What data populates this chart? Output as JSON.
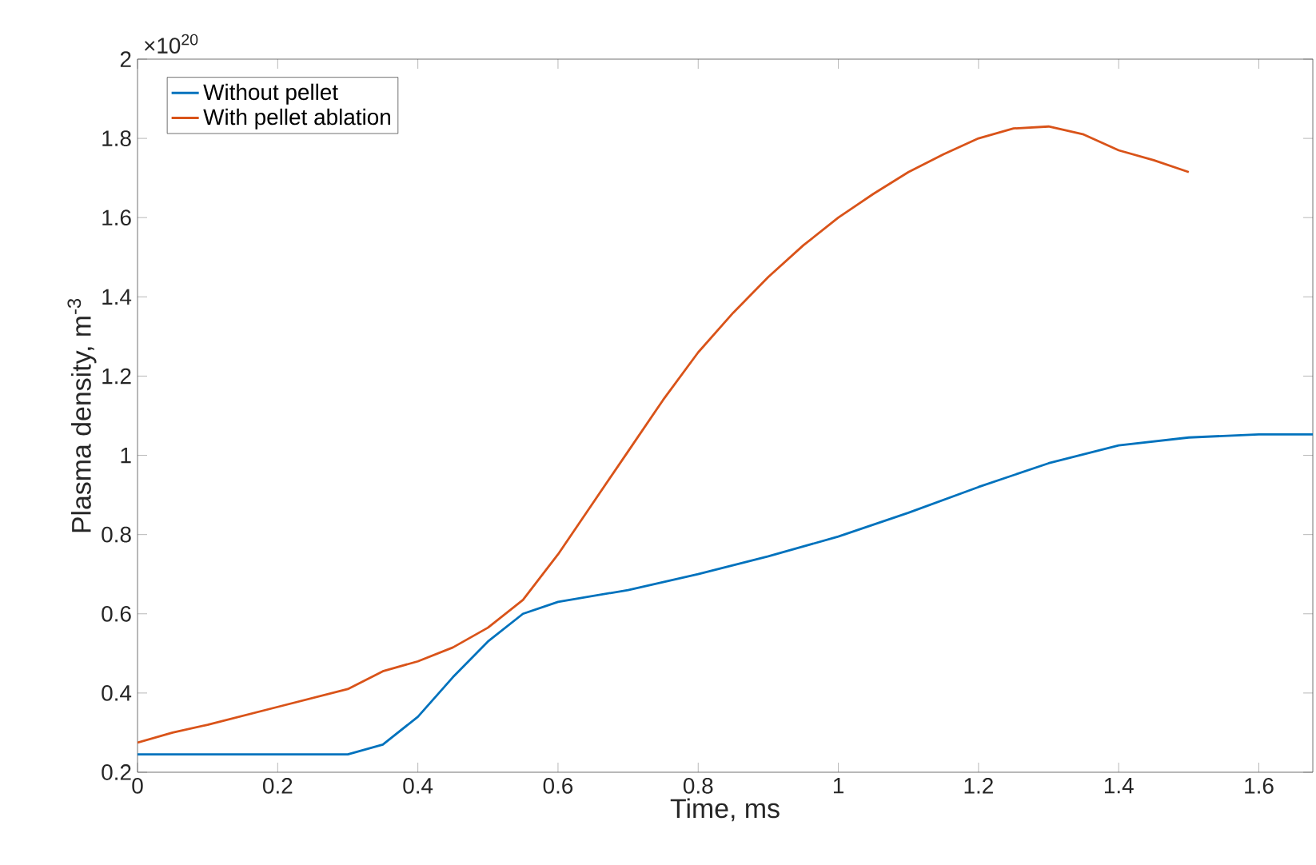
{
  "chart_data": {
    "type": "line",
    "xlabel": "Time, ms",
    "ylabel": "Plasma density, m$^{-3}$",
    "annotations": [
      "×10$^{20}$"
    ],
    "xlim": [
      0,
      1.677
    ],
    "ylim": [
      0.2,
      2
    ],
    "xticks": [
      0,
      0.2,
      0.4,
      0.6,
      0.8,
      1,
      1.2,
      1.4,
      1.6
    ],
    "yticks": [
      0.2,
      0.4,
      0.6,
      0.8,
      1,
      1.2,
      1.4,
      1.6,
      1.8,
      2
    ],
    "grid": false,
    "legend": "top left",
    "marker": "none",
    "line_style": "solid",
    "series": [
      {
        "name": "Without pellet",
        "color": "#0072bd",
        "x": [
          0,
          0.3,
          0.35,
          0.4,
          0.45,
          0.5,
          0.55,
          0.6,
          0.7,
          0.8,
          0.9,
          1.0,
          1.1,
          1.2,
          1.3,
          1.4,
          1.5,
          1.6,
          1.677
        ],
        "values": [
          0.245,
          0.245,
          0.27,
          0.34,
          0.44,
          0.53,
          0.6,
          0.63,
          0.66,
          0.7,
          0.745,
          0.795,
          0.855,
          0.92,
          0.98,
          1.025,
          1.045,
          1.053,
          1.053
        ]
      },
      {
        "name": "With pellet ablation",
        "color": "#d95319",
        "x": [
          0,
          0.05,
          0.1,
          0.2,
          0.3,
          0.35,
          0.4,
          0.45,
          0.5,
          0.55,
          0.6,
          0.65,
          0.7,
          0.75,
          0.8,
          0.85,
          0.9,
          0.95,
          1.0,
          1.05,
          1.1,
          1.15,
          1.2,
          1.25,
          1.3,
          1.35,
          1.4,
          1.45,
          1.5
        ],
        "values": [
          0.275,
          0.3,
          0.32,
          0.365,
          0.41,
          0.455,
          0.48,
          0.515,
          0.565,
          0.635,
          0.75,
          0.88,
          1.01,
          1.14,
          1.26,
          1.36,
          1.45,
          1.53,
          1.6,
          1.66,
          1.715,
          1.76,
          1.8,
          1.825,
          1.83,
          1.81,
          1.77,
          1.745,
          1.715
        ]
      }
    ]
  }
}
